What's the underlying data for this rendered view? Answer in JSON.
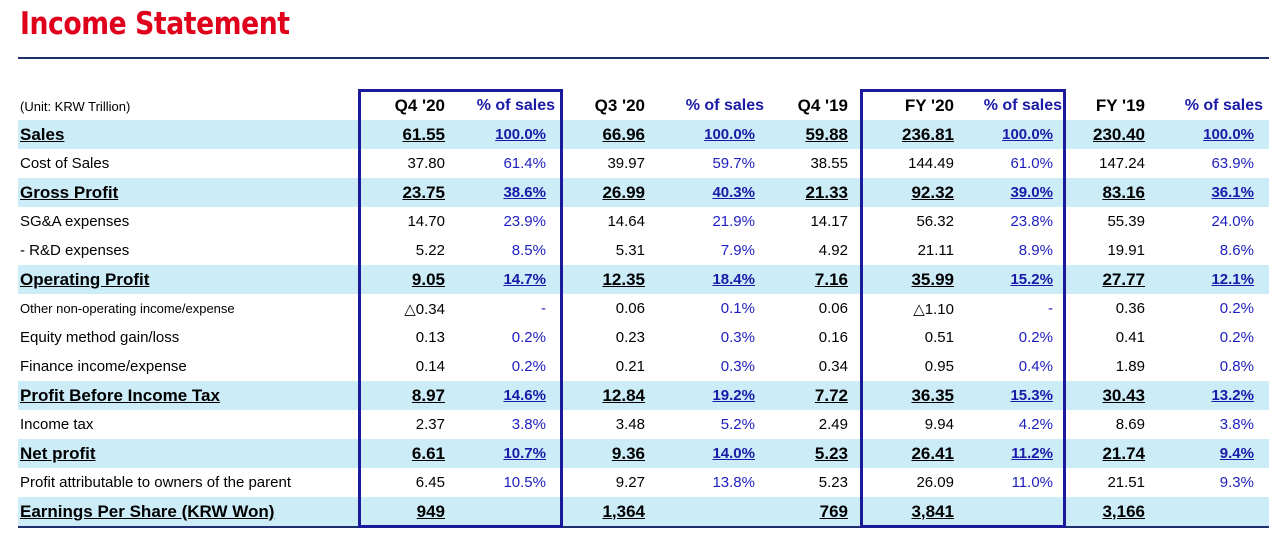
{
  "title": "Income Statement",
  "unit": "(Unit: KRW Trillion)",
  "columns": [
    "Q4 '20",
    "% of sales",
    "Q3 '20",
    "% of sales",
    "Q4 '19",
    "FY '20",
    "% of sales",
    "FY '19",
    "% of sales"
  ],
  "rows": [
    {
      "label": "Sales",
      "bold": true,
      "cells": [
        "61.55",
        "100.0%",
        "66.96",
        "100.0%",
        "59.88",
        "236.81",
        "100.0%",
        "230.40",
        "100.0%"
      ]
    },
    {
      "label": "Cost of Sales",
      "bold": false,
      "cells": [
        "37.80",
        "61.4%",
        "39.97",
        "59.7%",
        "38.55",
        "144.49",
        "61.0%",
        "147.24",
        "63.9%"
      ]
    },
    {
      "label": "Gross Profit",
      "bold": true,
      "cells": [
        "23.75",
        "38.6%",
        "26.99",
        "40.3%",
        "21.33",
        "92.32",
        "39.0%",
        "83.16",
        "36.1%"
      ]
    },
    {
      "label": "SG&A expenses",
      "bold": false,
      "cells": [
        "14.70",
        "23.9%",
        "14.64",
        "21.9%",
        "14.17",
        "56.32",
        "23.8%",
        "55.39",
        "24.0%"
      ]
    },
    {
      "label": " - R&D expenses",
      "bold": false,
      "cells": [
        "5.22",
        "8.5%",
        "5.31",
        "7.9%",
        "4.92",
        "21.11",
        "8.9%",
        "19.91",
        "8.6%"
      ]
    },
    {
      "label": "Operating Profit",
      "bold": true,
      "cells": [
        "9.05",
        "14.7%",
        "12.35",
        "18.4%",
        "7.16",
        "35.99",
        "15.2%",
        "27.77",
        "12.1%"
      ]
    },
    {
      "label": "Other non-operating income/expense",
      "bold": false,
      "small": true,
      "cells": [
        "△0.34",
        "-",
        "0.06",
        "0.1%",
        "0.06",
        "△1.10",
        "-",
        "0.36",
        "0.2%"
      ]
    },
    {
      "label": "Equity method gain/loss",
      "bold": false,
      "cells": [
        "0.13",
        "0.2%",
        "0.23",
        "0.3%",
        "0.16",
        "0.51",
        "0.2%",
        "0.41",
        "0.2%"
      ]
    },
    {
      "label": "Finance income/expense",
      "bold": false,
      "cells": [
        "0.14",
        "0.2%",
        "0.21",
        "0.3%",
        "0.34",
        "0.95",
        "0.4%",
        "1.89",
        "0.8%"
      ]
    },
    {
      "label": "Profit Before Income Tax",
      "bold": true,
      "cells": [
        "8.97",
        "14.6%",
        "12.84",
        "19.2%",
        "7.72",
        "36.35",
        "15.3%",
        "30.43",
        "13.2%"
      ]
    },
    {
      "label": "Income tax",
      "bold": false,
      "cells": [
        "2.37",
        "3.8%",
        "3.48",
        "5.2%",
        "2.49",
        "9.94",
        "4.2%",
        "8.69",
        "3.8%"
      ]
    },
    {
      "label": "Net profit",
      "bold": true,
      "cells": [
        "6.61",
        "10.7%",
        "9.36",
        "14.0%",
        "5.23",
        "26.41",
        "11.2%",
        "21.74",
        "9.4%"
      ]
    },
    {
      "label": "Profit attributable to owners of the parent",
      "bold": false,
      "cells": [
        "6.45",
        "10.5%",
        "9.27",
        "13.8%",
        "5.23",
        "26.09",
        "11.0%",
        "21.51",
        "9.3%"
      ]
    },
    {
      "label": "Earnings Per Share (KRW Won)",
      "bold": true,
      "cells": [
        "949",
        "",
        "1,364",
        "",
        "769",
        "3,841",
        "",
        "3,166",
        ""
      ]
    }
  ],
  "colors": {
    "title": "#e0001b",
    "highlight_row": "#ccecf8",
    "box_border": "#1a1a9a",
    "percent_text": "#2020c0"
  }
}
